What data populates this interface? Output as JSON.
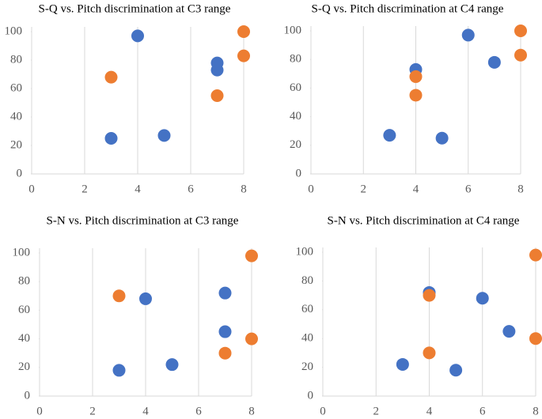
{
  "chart_data": [
    {
      "type": "scatter",
      "title": "S-Q vs. Pitch discrimination at C3 range",
      "xlim": [
        0,
        8
      ],
      "ylim": [
        0,
        100
      ],
      "xticks": [
        0,
        2,
        4,
        6,
        8
      ],
      "yticks": [
        0,
        20,
        40,
        60,
        80,
        100
      ],
      "grid": "x",
      "series": [
        {
          "color": "#4472c4",
          "x": [
            4,
            7,
            7,
            3,
            5
          ],
          "values": [
            97,
            78,
            73,
            25,
            27
          ]
        },
        {
          "color": "#ed7d31",
          "x": [
            3,
            8,
            8,
            7
          ],
          "values": [
            68,
            100,
            83,
            55
          ]
        }
      ]
    },
    {
      "type": "scatter",
      "title": "S-Q vs. Pitch discrimination at C4 range",
      "xlim": [
        0,
        8
      ],
      "ylim": [
        0,
        100
      ],
      "xticks": [
        0,
        2,
        4,
        6,
        8
      ],
      "yticks": [
        0,
        20,
        40,
        60,
        80,
        100
      ],
      "grid": "x",
      "series": [
        {
          "color": "#4472c4",
          "x": [
            6,
            7,
            4,
            3,
            5
          ],
          "values": [
            97,
            78,
            73,
            27,
            25
          ]
        },
        {
          "color": "#ed7d31",
          "x": [
            8,
            8,
            4,
            4
          ],
          "values": [
            100,
            83,
            68,
            55
          ]
        }
      ]
    },
    {
      "type": "scatter",
      "title": "S-N vs. Pitch discrimination at C3 range",
      "xlim": [
        0,
        8
      ],
      "ylim": [
        0,
        100
      ],
      "xticks": [
        0,
        2,
        4,
        6,
        8
      ],
      "yticks": [
        0,
        20,
        40,
        60,
        80,
        100
      ],
      "grid": "x",
      "series": [
        {
          "color": "#4472c4",
          "x": [
            4,
            7,
            7,
            3,
            5
          ],
          "values": [
            68,
            72,
            45,
            18,
            22
          ]
        },
        {
          "color": "#ed7d31",
          "x": [
            8,
            3,
            8,
            7
          ],
          "values": [
            98,
            70,
            40,
            30
          ]
        }
      ]
    },
    {
      "type": "scatter",
      "title": "S-N vs. Pitch discrimination at C4 range",
      "xlim": [
        0,
        8
      ],
      "ylim": [
        0,
        100
      ],
      "xticks": [
        0,
        2,
        4,
        6,
        8
      ],
      "yticks": [
        0,
        20,
        40,
        60,
        80,
        100
      ],
      "grid": "x",
      "series": [
        {
          "color": "#4472c4",
          "x": [
            4,
            6,
            7,
            3,
            5
          ],
          "values": [
            72,
            68,
            45,
            22,
            18
          ]
        },
        {
          "color": "#ed7d31",
          "x": [
            8,
            4,
            8,
            4
          ],
          "values": [
            98,
            70,
            40,
            30
          ]
        }
      ]
    }
  ]
}
